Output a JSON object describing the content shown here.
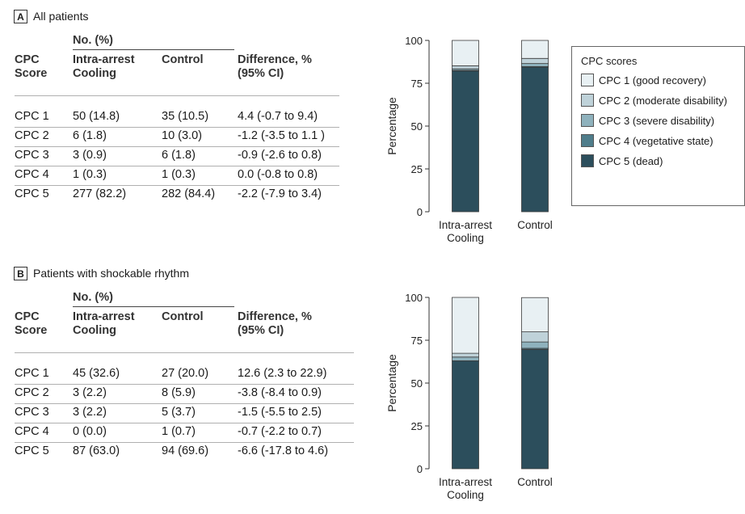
{
  "colors": {
    "CPC 1": "#e8f0f3",
    "CPC 2": "#bfd2d9",
    "CPC 3": "#8fb2bd",
    "CPC 4": "#4f7d8b",
    "CPC 5": "#2c4e5c"
  },
  "legend": {
    "title": "CPC scores",
    "items": [
      {
        "key": "CPC 1",
        "label": "CPC 1 (good recovery)"
      },
      {
        "key": "CPC 2",
        "label": "CPC 2 (moderate disability)"
      },
      {
        "key": "CPC 3",
        "label": "CPC 3 (severe disability)"
      },
      {
        "key": "CPC 4",
        "label": "CPC 4 (vegetative state)"
      },
      {
        "key": "CPC 5",
        "label": "CPC 5 (dead)"
      }
    ]
  },
  "panels": [
    {
      "letter": "A",
      "title": "All patients",
      "table": {
        "group_header": "No. (%)",
        "col1_header": [
          "CPC",
          "Score"
        ],
        "col2_header": [
          "Intra-arrest",
          "Cooling"
        ],
        "col3_header": [
          "Control"
        ],
        "col4_header": [
          "Difference, %",
          "(95% CI)"
        ],
        "rows": [
          [
            "CPC 1",
            "50 (14.8)",
            "35 (10.5)",
            "4.4 (-0.7 to 9.4)"
          ],
          [
            "CPC 2",
            "6 (1.8)",
            "10 (3.0)",
            "-1.2 (-3.5 to 1.1 )"
          ],
          [
            "CPC 3",
            "3 (0.9)",
            "6 (1.8)",
            "-0.9 (-2.6 to 0.8)"
          ],
          [
            "CPC 4",
            "1 (0.3)",
            "1 (0.3)",
            "0.0 (-0.8 to 0.8)"
          ],
          [
            "CPC 5",
            "277 (82.2)",
            "282 (84.4)",
            "-2.2 (-7.9 to 3.4)"
          ]
        ]
      }
    },
    {
      "letter": "B",
      "title": "Patients with shockable rhythm",
      "table": {
        "group_header": "No. (%)",
        "col1_header": [
          "CPC",
          "Score"
        ],
        "col2_header": [
          "Intra-arrest",
          "Cooling"
        ],
        "col3_header": [
          "Control"
        ],
        "col4_header": [
          "Difference, %",
          "(95% CI)"
        ],
        "rows": [
          [
            "CPC 1",
            "45 (32.6)",
            "27 (20.0)",
            "12.6 (2.3 to 22.9)"
          ],
          [
            "CPC 2",
            "3 (2.2)",
            "8 (5.9)",
            "-3.8 (-8.4 to 0.9)"
          ],
          [
            "CPC 3",
            "3 (2.2)",
            "5 (3.7)",
            "-1.5 (-5.5 to 2.5)"
          ],
          [
            "CPC 4",
            "0 (0.0)",
            "1 (0.7)",
            "-0.7 (-2.2 to 0.7)"
          ],
          [
            "CPC 5",
            "87 (63.0)",
            "94 (69.6)",
            "-6.6 (-17.8 to 4.6)"
          ]
        ]
      }
    }
  ],
  "chart_data": [
    {
      "type": "bar",
      "stacked": true,
      "title": "",
      "ylabel": "Percentage",
      "ylim": [
        0,
        100
      ],
      "yticks": [
        0,
        25,
        50,
        75,
        100
      ],
      "categories": [
        [
          "Intra-arrest",
          "Cooling"
        ],
        [
          "Control"
        ]
      ],
      "series": [
        {
          "name": "CPC 5",
          "values": [
            82.2,
            84.4
          ]
        },
        {
          "name": "CPC 4",
          "values": [
            0.3,
            0.3
          ]
        },
        {
          "name": "CPC 3",
          "values": [
            0.9,
            1.8
          ]
        },
        {
          "name": "CPC 2",
          "values": [
            1.8,
            3.0
          ]
        },
        {
          "name": "CPC 1",
          "values": [
            14.8,
            10.5
          ]
        }
      ]
    },
    {
      "type": "bar",
      "stacked": true,
      "title": "",
      "ylabel": "Percentage",
      "ylim": [
        0,
        100
      ],
      "yticks": [
        0,
        25,
        50,
        75,
        100
      ],
      "categories": [
        [
          "Intra-arrest",
          "Cooling"
        ],
        [
          "Control"
        ]
      ],
      "series": [
        {
          "name": "CPC 5",
          "values": [
            63.0,
            69.6
          ]
        },
        {
          "name": "CPC 4",
          "values": [
            0.0,
            0.7
          ]
        },
        {
          "name": "CPC 3",
          "values": [
            2.2,
            3.7
          ]
        },
        {
          "name": "CPC 2",
          "values": [
            2.2,
            5.9
          ]
        },
        {
          "name": "CPC 1",
          "values": [
            32.6,
            20.0
          ]
        }
      ]
    }
  ]
}
